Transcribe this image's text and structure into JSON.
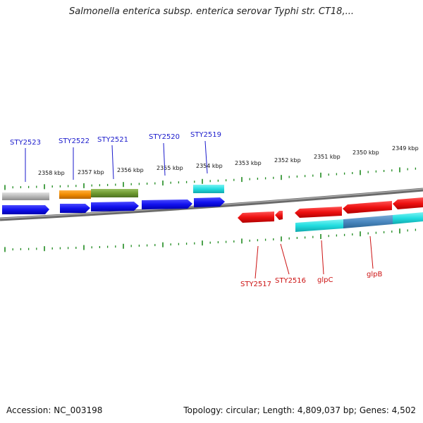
{
  "title": "Salmonella enterica subsp. enterica serovar Typhi str. CT18,...",
  "footer": {
    "accession": "Accession: NC_003198",
    "summary": "Topology: circular; Length: 4,809,037 bp; Genes: 4,502"
  },
  "scale_labels": [
    "2358 kbp",
    "2357 kbp",
    "2356 kbp",
    "2355 kbp",
    "2354 kbp",
    "2353 kbp",
    "2352 kbp",
    "2351 kbp",
    "2350 kbp",
    "2349 kbp"
  ],
  "top_genes": [
    "STY2523",
    "STY2522",
    "STY2521",
    "STY2520",
    "STY2519"
  ],
  "bottom_genes": [
    "STY2517",
    "STY2516",
    "glpC",
    "glpB"
  ],
  "colors": {
    "forward_label": "#1a1acc",
    "reverse_label": "#cc1111",
    "tick": "#1f8a1f",
    "forward_gene": "#1111ee",
    "reverse_gene": "#ee1111",
    "cyan": "#22dde0",
    "steelblue": "#4a88c0",
    "orange": "#f08a00",
    "olive": "#6f9a30",
    "gray": "#b8b8b8"
  }
}
